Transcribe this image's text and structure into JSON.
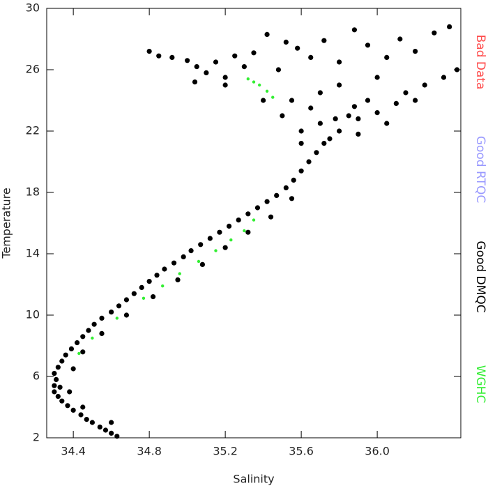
{
  "chart_data": {
    "type": "scatter",
    "x_label": "Salinity",
    "y_label": "Temperature",
    "xlim": [
      34.26,
      36.44
    ],
    "ylim": [
      2,
      30
    ],
    "xticks": [
      34.4,
      34.8,
      35.2,
      35.6,
      {
        "value": 36,
        "label": "36.0"
      }
    ],
    "yticks": [
      2,
      6,
      10,
      14,
      18,
      22,
      26,
      30
    ],
    "legend": "right",
    "series": [
      {
        "name": "Bad Data",
        "color": "#ff4d4d",
        "x": [],
        "values": []
      },
      {
        "name": "Good RTQC",
        "color": "#9999ff",
        "x": [],
        "values": []
      },
      {
        "name": "Good DMQC",
        "color": "#000000",
        "x": [
          34.63,
          34.6,
          34.57,
          34.54,
          34.5,
          34.47,
          34.44,
          34.4,
          34.37,
          34.34,
          34.32,
          34.3,
          34.3,
          34.31,
          34.33,
          34.3,
          34.32,
          34.34,
          34.36,
          34.39,
          34.42,
          34.45,
          34.48,
          34.51,
          34.55,
          34.6,
          34.64,
          34.68,
          34.72,
          34.76,
          34.8,
          34.84,
          34.88,
          34.93,
          34.98,
          35.02,
          35.07,
          35.12,
          35.17,
          35.22,
          35.27,
          35.32,
          35.37,
          35.42,
          35.47,
          35.52,
          35.56,
          35.6,
          35.64,
          35.68,
          35.72,
          34.6,
          34.45,
          34.38,
          34.4,
          34.45,
          34.55,
          34.68,
          34.82,
          34.95,
          35.08,
          35.2,
          35.32,
          35.44,
          35.55,
          35.6,
          35.7,
          35.8,
          35.9,
          36.0,
          36.1,
          35.65,
          35.75,
          35.85,
          35.95,
          36.05,
          36.15,
          36.25,
          36.35,
          36.42,
          35.55,
          35.6,
          35.7,
          35.8,
          35.9,
          36.0,
          36.2,
          35.5,
          35.78,
          35.88,
          34.8,
          34.85,
          34.92,
          35.0,
          35.05,
          35.1,
          35.15,
          35.2,
          35.25,
          35.3,
          35.35,
          35.42,
          35.48,
          35.52,
          35.58,
          35.65,
          35.72,
          35.8,
          35.88,
          35.95,
          36.05,
          36.12,
          36.2,
          36.3,
          36.38,
          35.04,
          35.2,
          35.4
        ],
        "values": [
          2.1,
          2.3,
          2.5,
          2.7,
          3.0,
          3.2,
          3.5,
          3.8,
          4.1,
          4.4,
          4.7,
          5.0,
          5.4,
          5.8,
          5.3,
          6.2,
          6.6,
          7.0,
          7.4,
          7.8,
          8.2,
          8.6,
          9.0,
          9.4,
          9.8,
          10.2,
          10.6,
          11.0,
          11.4,
          11.8,
          12.2,
          12.6,
          13.0,
          13.4,
          13.8,
          14.2,
          14.6,
          15.0,
          15.4,
          15.8,
          16.2,
          16.6,
          17.0,
          17.4,
          17.8,
          18.3,
          18.8,
          19.4,
          20.0,
          20.6,
          21.2,
          3.0,
          4.0,
          5.0,
          6.5,
          7.6,
          8.8,
          10.0,
          11.2,
          12.3,
          13.3,
          14.4,
          15.4,
          16.4,
          17.6,
          22.0,
          22.5,
          22.0,
          22.8,
          23.2,
          23.8,
          23.5,
          21.5,
          23.0,
          24.0,
          22.5,
          24.5,
          25.0,
          25.5,
          26.0,
          24.0,
          21.2,
          24.5,
          25.0,
          21.8,
          25.5,
          24.0,
          23.0,
          22.8,
          23.6,
          27.2,
          26.9,
          26.8,
          26.6,
          26.2,
          25.8,
          26.5,
          25.5,
          26.9,
          26.2,
          27.1,
          28.3,
          26.0,
          27.8,
          27.4,
          26.8,
          27.9,
          26.5,
          28.6,
          27.6,
          26.8,
          28.0,
          27.2,
          28.4,
          28.8,
          25.2,
          25.0,
          24.0
        ]
      },
      {
        "name": "WGHC",
        "color": "#33ee33",
        "x": [
          34.43,
          34.5,
          34.63,
          34.77,
          34.87,
          34.96,
          35.06,
          35.15,
          35.23,
          35.3,
          35.35,
          35.32,
          35.35,
          35.38,
          35.42,
          35.45
        ],
        "values": [
          7.5,
          8.5,
          9.8,
          11.1,
          11.9,
          12.7,
          13.5,
          14.2,
          14.9,
          15.5,
          16.2,
          25.4,
          25.2,
          25.0,
          24.6,
          24.2
        ]
      }
    ]
  }
}
